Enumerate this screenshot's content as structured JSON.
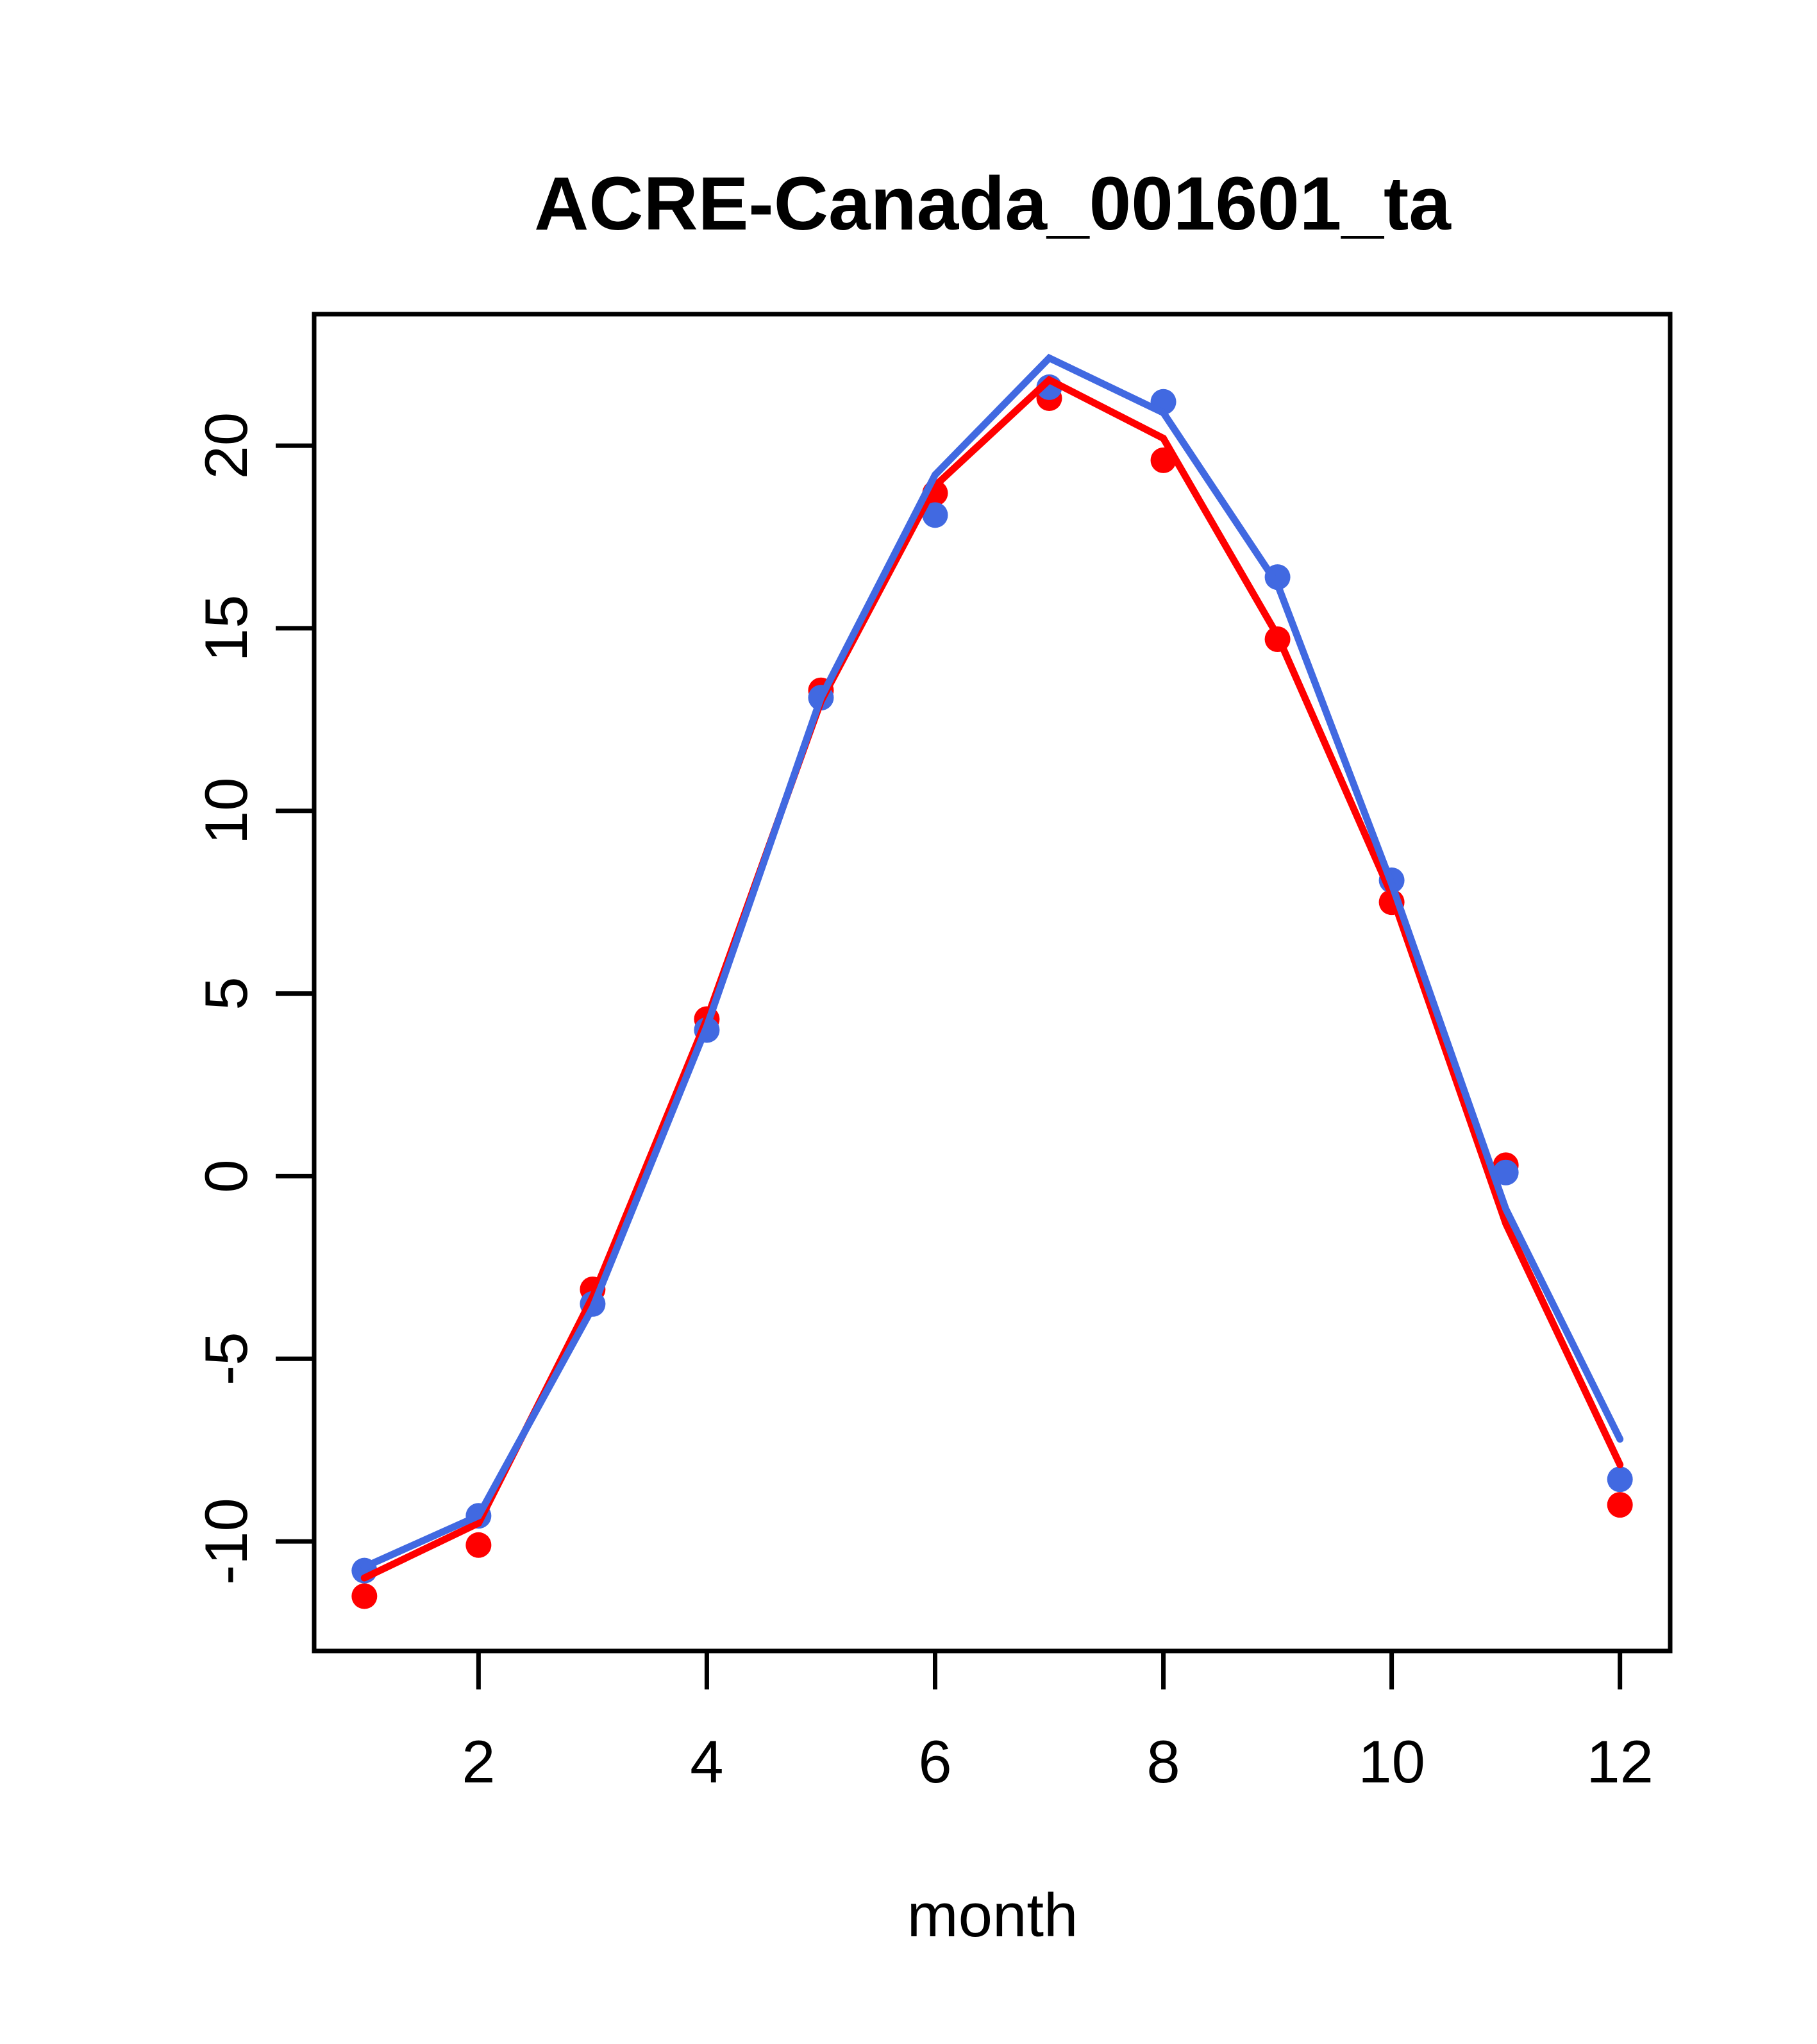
{
  "chart_data": {
    "type": "line",
    "title": "ACRE-Canada_001601_ta",
    "xlabel": "month",
    "ylabel": "",
    "x": [
      1,
      2,
      3,
      4,
      5,
      6,
      7,
      8,
      9,
      10,
      11,
      12
    ],
    "xticks": [
      2,
      4,
      6,
      8,
      10,
      12
    ],
    "yticks": [
      -10,
      -5,
      0,
      5,
      10,
      15,
      20
    ],
    "xlim": [
      0.56,
      12.44
    ],
    "ylim": [
      -13.0,
      23.6
    ],
    "grid": false,
    "legend": "none",
    "background_color": "#ffffff",
    "axis_color": "#000000",
    "series": [
      {
        "name": "red-points",
        "kind": "points",
        "color": "#ff0000",
        "values": [
          -11.5,
          -10.1,
          -3.1,
          4.3,
          13.3,
          18.7,
          21.3,
          19.6,
          14.7,
          7.5,
          0.3,
          -9.0
        ]
      },
      {
        "name": "blue-points",
        "kind": "points",
        "color": "#4169e1",
        "values": [
          -10.8,
          -9.3,
          -3.5,
          4.0,
          13.1,
          18.1,
          21.6,
          21.2,
          16.4,
          8.1,
          0.1,
          -8.3
        ]
      },
      {
        "name": "red-line",
        "kind": "line",
        "color": "#ff0000",
        "values": [
          -11.0,
          -9.5,
          -3.3,
          4.3,
          13.0,
          18.9,
          21.8,
          20.2,
          14.8,
          7.7,
          -1.3,
          -7.9
        ]
      },
      {
        "name": "blue-line",
        "kind": "line",
        "color": "#4169e1",
        "values": [
          -10.7,
          -9.3,
          -3.6,
          4.1,
          13.1,
          19.2,
          22.4,
          20.9,
          16.2,
          8.0,
          -0.9,
          -7.2
        ]
      }
    ]
  }
}
